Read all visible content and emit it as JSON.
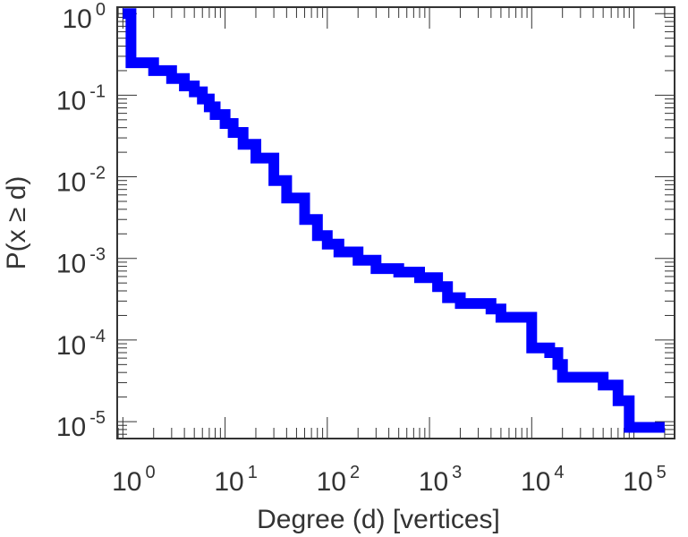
{
  "chart_data": {
    "type": "line",
    "xlabel": "Degree (d) [vertices]",
    "ylabel": "P(x ≥ d)",
    "x_scale": "log",
    "y_scale": "log",
    "xlim": [
      0.88,
      250000
    ],
    "ylim": [
      6.2e-06,
      1.2
    ],
    "x_ticks": [
      {
        "base": "10",
        "exp": "0",
        "value": 1
      },
      {
        "base": "10",
        "exp": "1",
        "value": 10
      },
      {
        "base": "10",
        "exp": "2",
        "value": 100
      },
      {
        "base": "10",
        "exp": "3",
        "value": 1000
      },
      {
        "base": "10",
        "exp": "4",
        "value": 10000
      },
      {
        "base": "10",
        "exp": "5",
        "value": 100000
      }
    ],
    "y_ticks": [
      {
        "base": "10",
        "exp": "0",
        "value": 1
      },
      {
        "base": "10",
        "exp": "-1",
        "value": 0.1
      },
      {
        "base": "10",
        "exp": "-2",
        "value": 0.01
      },
      {
        "base": "10",
        "exp": "-3",
        "value": 0.001
      },
      {
        "base": "10",
        "exp": "-4",
        "value": 0.0001
      },
      {
        "base": "10",
        "exp": "-5",
        "value": 1e-05
      }
    ],
    "grid": false,
    "series": [
      {
        "color": "#0000ff",
        "step": true,
        "points": [
          [
            1,
            1
          ],
          [
            1.2,
            0.25
          ],
          [
            2,
            0.2
          ],
          [
            3,
            0.16
          ],
          [
            4,
            0.13
          ],
          [
            5,
            0.11
          ],
          [
            6,
            0.09
          ],
          [
            7,
            0.072
          ],
          [
            8,
            0.058
          ],
          [
            10,
            0.045
          ],
          [
            12,
            0.035
          ],
          [
            15,
            0.025
          ],
          [
            20,
            0.017
          ],
          [
            30,
            0.009
          ],
          [
            40,
            0.0055
          ],
          [
            60,
            0.003
          ],
          [
            80,
            0.0019
          ],
          [
            100,
            0.0015
          ],
          [
            130,
            0.0012
          ],
          [
            200,
            0.00095
          ],
          [
            300,
            0.00075
          ],
          [
            500,
            0.00068
          ],
          [
            800,
            0.00058
          ],
          [
            1200,
            0.00045
          ],
          [
            1500,
            0.00033
          ],
          [
            2000,
            0.00028
          ],
          [
            4000,
            0.00024
          ],
          [
            5000,
            0.00019
          ],
          [
            10000,
            0.00018
          ],
          [
            10000,
            8e-05
          ],
          [
            15000,
            7e-05
          ],
          [
            18000,
            5e-05
          ],
          [
            20000,
            3.5e-05
          ],
          [
            40000,
            3.5e-05
          ],
          [
            50000,
            2.8e-05
          ],
          [
            70000,
            1.8e-05
          ],
          [
            90000,
            8.5e-06
          ],
          [
            200000,
            8.5e-06
          ]
        ]
      }
    ]
  }
}
